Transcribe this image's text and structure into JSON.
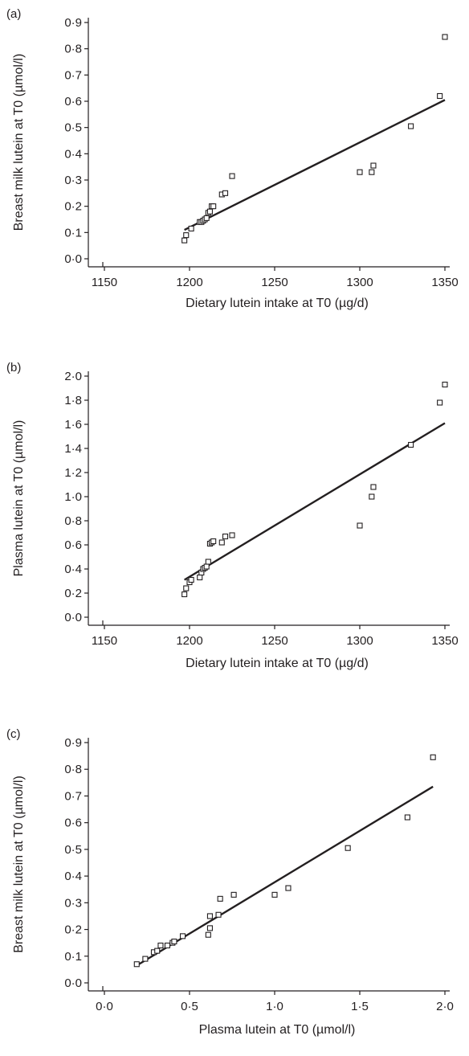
{
  "chart_data": [
    {
      "type": "scatter",
      "panel_label": "(a)",
      "title": "",
      "xlabel": "Dietary lutein intake at T0 (µg/d)",
      "ylabel": "Breast milk lutein at T0 (µmol/l)",
      "xlim": [
        1150,
        1350
      ],
      "ylim": [
        0,
        0.9
      ],
      "xticks": [
        "1150",
        "1200",
        "1250",
        "1300",
        "1350"
      ],
      "yticks": [
        "0·0",
        "0·1",
        "0·2",
        "0·3",
        "0·4",
        "0·5",
        "0·6",
        "0·7",
        "0·8",
        "0·9"
      ],
      "points": {
        "x": [
          1197,
          1198,
          1201,
          1206,
          1207,
          1208,
          1209,
          1210,
          1211,
          1212,
          1213,
          1214,
          1219,
          1221,
          1225,
          1300,
          1307,
          1308,
          1330,
          1347,
          1350
        ],
        "y": [
          0.07,
          0.09,
          0.115,
          0.14,
          0.14,
          0.145,
          0.15,
          0.155,
          0.175,
          0.18,
          0.2,
          0.2,
          0.245,
          0.25,
          0.315,
          0.33,
          0.33,
          0.355,
          0.505,
          0.62,
          0.845
        ]
      },
      "fit_line": {
        "x": [
          1197,
          1350
        ],
        "y": [
          0.11,
          0.605
        ]
      },
      "grid": false
    },
    {
      "type": "scatter",
      "panel_label": "(b)",
      "title": "",
      "xlabel": "Dietary lutein intake at T0 (µg/d)",
      "ylabel": "Plasma lutein at T0 (µmol/l)",
      "xlim": [
        1150,
        1350
      ],
      "ylim": [
        0,
        2.0
      ],
      "xticks": [
        "1150",
        "1200",
        "1250",
        "1300",
        "1350"
      ],
      "yticks": [
        "0·0",
        "0·2",
        "0·4",
        "0·6",
        "0·8",
        "1·0",
        "1·2",
        "1·4",
        "1·6",
        "1·8",
        "2·0"
      ],
      "points": {
        "x": [
          1197,
          1198,
          1200,
          1201,
          1206,
          1207,
          1208,
          1209,
          1210,
          1211,
          1212,
          1213,
          1214,
          1219,
          1221,
          1225,
          1300,
          1307,
          1308,
          1330,
          1347,
          1350
        ],
        "y": [
          0.19,
          0.24,
          0.29,
          0.31,
          0.33,
          0.37,
          0.4,
          0.41,
          0.42,
          0.46,
          0.61,
          0.62,
          0.63,
          0.62,
          0.67,
          0.68,
          0.76,
          1.0,
          1.08,
          1.43,
          1.78,
          1.93
        ]
      },
      "fit_line": {
        "x": [
          1197,
          1350
        ],
        "y": [
          0.31,
          1.61
        ]
      },
      "grid": false
    },
    {
      "type": "scatter",
      "panel_label": "(c)",
      "title": "",
      "xlabel": "Plasma lutein at T0 (µmol/l)",
      "ylabel": "Breast milk lutein at T0 (µmol/l)",
      "xlim": [
        0,
        2.0
      ],
      "ylim": [
        0,
        0.9
      ],
      "xticks": [
        "0·0",
        "0·5",
        "1·0",
        "1·5",
        "2·0"
      ],
      "yticks": [
        "0·0",
        "0·1",
        "0·2",
        "0·3",
        "0·4",
        "0·5",
        "0·6",
        "0·7",
        "0·8",
        "0·9"
      ],
      "points": {
        "x": [
          0.19,
          0.24,
          0.29,
          0.31,
          0.33,
          0.37,
          0.4,
          0.41,
          0.46,
          0.61,
          0.62,
          0.62,
          0.67,
          0.68,
          0.76,
          1.0,
          1.08,
          1.43,
          1.78,
          1.93
        ],
        "y": [
          0.07,
          0.09,
          0.115,
          0.12,
          0.14,
          0.14,
          0.15,
          0.155,
          0.175,
          0.18,
          0.205,
          0.25,
          0.255,
          0.315,
          0.33,
          0.33,
          0.355,
          0.505,
          0.62,
          0.845
        ]
      },
      "fit_line": {
        "x": [
          0.19,
          1.93
        ],
        "y": [
          0.065,
          0.735
        ]
      },
      "grid": false
    }
  ]
}
